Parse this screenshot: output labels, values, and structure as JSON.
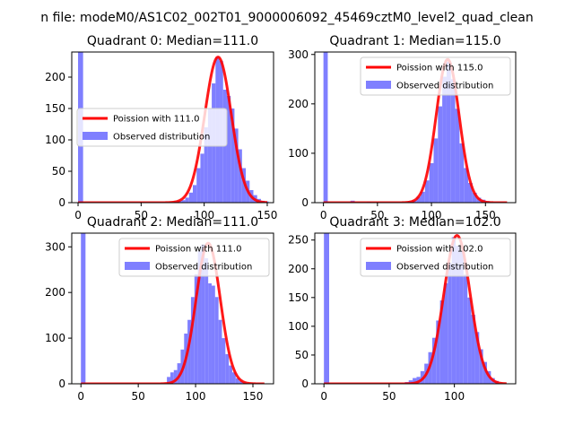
{
  "suptitle": "n file: modeM0/AS1C02_002T01_9000006092_45469cztM0_level2_quad_clean",
  "colors": {
    "fit_line": "#ff0000",
    "histogram": "#7f7fff",
    "axes": "#000000"
  },
  "chart_data": [
    {
      "type": "bar",
      "title": "Quadrant 0: Median=111.0",
      "xlim": [
        -5,
        155
      ],
      "ylim": [
        0,
        240
      ],
      "xticks": [
        0,
        50,
        100,
        150
      ],
      "yticks": [
        0,
        50,
        100,
        150,
        200
      ],
      "legend": {
        "placement": "center-left",
        "fit_label": "Poission with 111.0",
        "hist_label": "Observed distribution"
      },
      "grid": false,
      "hist_bins": [
        [
          0,
          4,
          240
        ],
        [
          76,
          79,
          2
        ],
        [
          79,
          82,
          3
        ],
        [
          82,
          85,
          4
        ],
        [
          85,
          88,
          8
        ],
        [
          88,
          91,
          16
        ],
        [
          91,
          94,
          28
        ],
        [
          94,
          97,
          55
        ],
        [
          97,
          100,
          78
        ],
        [
          100,
          103,
          120
        ],
        [
          103,
          106,
          150
        ],
        [
          106,
          109,
          190
        ],
        [
          109,
          112,
          232
        ],
        [
          112,
          115,
          226
        ],
        [
          115,
          118,
          180
        ],
        [
          118,
          121,
          170
        ],
        [
          121,
          124,
          150
        ],
        [
          124,
          127,
          118
        ],
        [
          127,
          130,
          85
        ],
        [
          130,
          133,
          55
        ],
        [
          133,
          136,
          35
        ],
        [
          136,
          139,
          20
        ],
        [
          139,
          142,
          12
        ],
        [
          142,
          145,
          6
        ],
        [
          145,
          148,
          3
        ],
        [
          148,
          151,
          2
        ]
      ],
      "fit": {
        "mean": 111.0,
        "peak": 232,
        "sigma": 10.5,
        "x_range": [
          0,
          150
        ]
      }
    },
    {
      "type": "bar",
      "title": "Quadrant 1: Median=115.0",
      "xlim": [
        -8,
        178
      ],
      "ylim": [
        0,
        305
      ],
      "xticks": [
        0,
        50,
        100,
        150
      ],
      "yticks": [
        0,
        100,
        200,
        300
      ],
      "legend": {
        "placement": "upper-right",
        "fit_label": "Poission with 115.0",
        "hist_label": "Observed distribution"
      },
      "grid": false,
      "hist_bins": [
        [
          0,
          4,
          305
        ],
        [
          25,
          29,
          4
        ],
        [
          40,
          44,
          2
        ],
        [
          78,
          82,
          3
        ],
        [
          82,
          86,
          5
        ],
        [
          86,
          90,
          12
        ],
        [
          90,
          94,
          22
        ],
        [
          94,
          98,
          45
        ],
        [
          98,
          102,
          80
        ],
        [
          102,
          106,
          130
        ],
        [
          106,
          110,
          195
        ],
        [
          110,
          114,
          255
        ],
        [
          114,
          118,
          285
        ],
        [
          118,
          122,
          250
        ],
        [
          122,
          126,
          190
        ],
        [
          126,
          130,
          120
        ],
        [
          130,
          134,
          70
        ],
        [
          134,
          138,
          40
        ],
        [
          138,
          142,
          20
        ],
        [
          142,
          146,
          10
        ],
        [
          146,
          150,
          6
        ],
        [
          150,
          154,
          3
        ]
      ],
      "fit": {
        "mean": 115.0,
        "peak": 290,
        "sigma": 10.7,
        "x_range": [
          0,
          170
        ]
      }
    },
    {
      "type": "bar",
      "title": "Quadrant 2: Median=111.0",
      "xlim": [
        -8,
        168
      ],
      "ylim": [
        0,
        330
      ],
      "xticks": [
        0,
        50,
        100,
        150
      ],
      "yticks": [
        0,
        100,
        200,
        300
      ],
      "legend": {
        "placement": "upper-right",
        "fit_label": "Poission with 111.0",
        "hist_label": "Observed distribution"
      },
      "grid": false,
      "hist_bins": [
        [
          0,
          4,
          330
        ],
        [
          75,
          78,
          15
        ],
        [
          78,
          81,
          25
        ],
        [
          81,
          84,
          30
        ],
        [
          84,
          87,
          45
        ],
        [
          87,
          90,
          75
        ],
        [
          90,
          93,
          110
        ],
        [
          93,
          96,
          140
        ],
        [
          96,
          99,
          190
        ],
        [
          99,
          102,
          240
        ],
        [
          102,
          105,
          290
        ],
        [
          105,
          108,
          305
        ],
        [
          108,
          111,
          275
        ],
        [
          111,
          114,
          220
        ],
        [
          114,
          117,
          215
        ],
        [
          117,
          120,
          190
        ],
        [
          120,
          123,
          140
        ],
        [
          123,
          126,
          100
        ],
        [
          126,
          129,
          65
        ],
        [
          129,
          132,
          40
        ],
        [
          132,
          135,
          25
        ],
        [
          135,
          138,
          12
        ],
        [
          138,
          141,
          6
        ],
        [
          141,
          144,
          3
        ]
      ],
      "fit": {
        "mean": 111.0,
        "peak": 308,
        "sigma": 10.5,
        "x_range": [
          0,
          160
        ]
      }
    },
    {
      "type": "bar",
      "title": "Quadrant 3: Median=102.0",
      "xlim": [
        -7,
        147
      ],
      "ylim": [
        0,
        262
      ],
      "xticks": [
        0,
        50,
        100
      ],
      "yticks": [
        0,
        50,
        100,
        150,
        200,
        250
      ],
      "legend": {
        "placement": "upper-right",
        "fit_label": "Poission with 102.0",
        "hist_label": "Observed distribution"
      },
      "grid": false,
      "hist_bins": [
        [
          0,
          4,
          262
        ],
        [
          62,
          65,
          3
        ],
        [
          65,
          68,
          6
        ],
        [
          68,
          71,
          10
        ],
        [
          71,
          74,
          12
        ],
        [
          74,
          77,
          22
        ],
        [
          77,
          80,
          35
        ],
        [
          80,
          83,
          55
        ],
        [
          83,
          86,
          80
        ],
        [
          86,
          89,
          110
        ],
        [
          89,
          92,
          145
        ],
        [
          92,
          95,
          175
        ],
        [
          95,
          98,
          210
        ],
        [
          98,
          101,
          255
        ],
        [
          101,
          104,
          240
        ],
        [
          104,
          107,
          230
        ],
        [
          107,
          110,
          190
        ],
        [
          110,
          113,
          150
        ],
        [
          113,
          116,
          120
        ],
        [
          116,
          119,
          90
        ],
        [
          119,
          122,
          60
        ],
        [
          122,
          125,
          38
        ],
        [
          125,
          128,
          22
        ],
        [
          128,
          131,
          10
        ],
        [
          131,
          134,
          5
        ]
      ],
      "fit": {
        "mean": 102.0,
        "peak": 258,
        "sigma": 10.1,
        "x_range": [
          0,
          140
        ]
      }
    }
  ]
}
